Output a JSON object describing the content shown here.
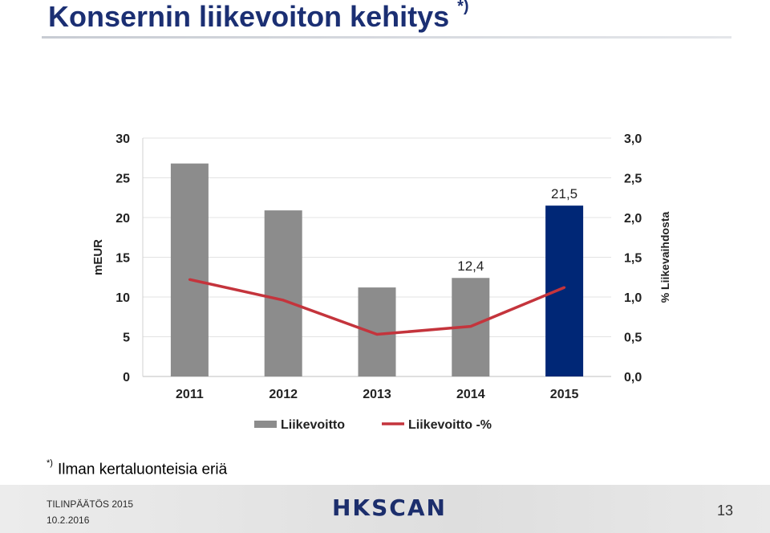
{
  "title": {
    "text": "Konsernin liikevoiton kehitys",
    "marker": "*)"
  },
  "chart_data": {
    "type": "bar",
    "categories": [
      "2011",
      "2012",
      "2013",
      "2014",
      "2015"
    ],
    "series": [
      {
        "name": "Liikevoitto",
        "kind": "bar",
        "axis": "left",
        "values": [
          26.8,
          20.9,
          11.2,
          12.4,
          21.5
        ],
        "colors": [
          "#8c8c8c",
          "#8c8c8c",
          "#8c8c8c",
          "#8c8c8c",
          "#002776"
        ]
      },
      {
        "name": "Liikevoitto -%",
        "kind": "line",
        "axis": "right",
        "color": "#c4343c",
        "values": [
          1.22,
          0.96,
          0.53,
          0.63,
          1.12
        ]
      }
    ],
    "data_labels": [
      {
        "category": "2014",
        "text": "12,4"
      },
      {
        "category": "2015",
        "text": "21,5"
      }
    ],
    "ylabel": "mEUR",
    "ylim": [
      0,
      30
    ],
    "yticks": [
      "0",
      "5",
      "10",
      "15",
      "20",
      "25",
      "30"
    ],
    "y2label": "% Liikevaihdosta",
    "y2lim": [
      0,
      3
    ],
    "y2ticks": [
      "0,0",
      "0,5",
      "1,0",
      "1,5",
      "2,0",
      "2,5",
      "3,0"
    ],
    "grid": true,
    "legend_position": "bottom"
  },
  "footnote": {
    "marker": "*)",
    "text": "Ilman kertaluonteisia eriä"
  },
  "footer": {
    "line1": "TILINPÄÄTÖS 2015",
    "line2": "10.2.2016",
    "logo": "HKSCAN",
    "page_number": "13"
  }
}
